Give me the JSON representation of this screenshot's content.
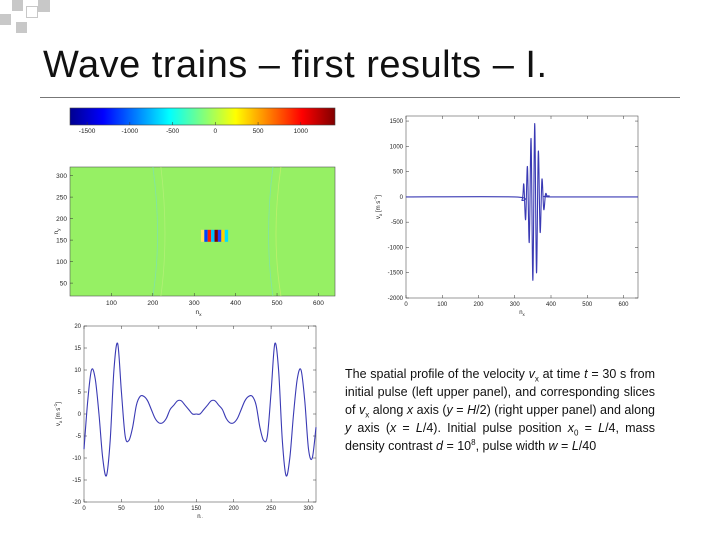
{
  "slide": {
    "title": "Wave trains – first results – I.",
    "colors": {
      "title_rule": "#777777",
      "deco_square": "#c8c8c8",
      "curve": "#3a3ab4",
      "field": "#96f064"
    }
  },
  "caption": {
    "s1": "The spatial profile of the velocity ",
    "v": "v",
    "x": "x",
    "s2": " at time ",
    "t": "t",
    "s3": " = 30 s from initial pulse (left upper panel), and corresponding slices of ",
    "s4": " along ",
    "x_axis": "x",
    "s5": " axis (",
    "y": "y",
    "s6": " = ",
    "H": "H",
    "s7": "/2) (right upper panel) and along ",
    "y_axis": "y",
    "s8": " axis (",
    "x2": "x",
    "s9": " = ",
    "L": "L",
    "s10": "/4). Initial pulse position ",
    "x0": "x",
    "zero": "0",
    "s11": " = ",
    "L2": "L",
    "s12": "/4, mass density contrast ",
    "d": "d",
    "s13": " = 10",
    "eight": "8",
    "s14": ", pulse width ",
    "w": "w",
    "s15": " = ",
    "L3": "L",
    "s16": "/40"
  },
  "chart_data": [
    {
      "type": "heatmap",
      "panel": "left upper",
      "colorbar": {
        "ticks": [
          -1500,
          -1000,
          -500,
          0,
          500,
          1000
        ],
        "range": [
          -1700,
          1400
        ],
        "colormap": "jet"
      },
      "xlabel": "n_x",
      "ylabel": "n_y",
      "x_ticks": [
        100,
        200,
        300,
        400,
        500,
        600
      ],
      "y_ticks": [
        50,
        100,
        150,
        200,
        250,
        300
      ],
      "xlim": [
        0,
        640
      ],
      "ylim": [
        20,
        320
      ],
      "background_value": 0,
      "pulse_center": [
        350,
        160
      ]
    },
    {
      "type": "line",
      "panel": "right upper",
      "xlabel": "n_x",
      "ylabel": "v_x [m s^-1]",
      "x_ticks": [
        0,
        100,
        200,
        300,
        400,
        500,
        600
      ],
      "y_ticks": [
        -2000,
        -1500,
        -1000,
        -500,
        0,
        500,
        1000,
        1500
      ],
      "xlim": [
        0,
        640
      ],
      "ylim": [
        -2000,
        1600
      ],
      "grid": false,
      "x": [
        0,
        300,
        320,
        325,
        330,
        335,
        340,
        345,
        350,
        355,
        360,
        365,
        370,
        375,
        380,
        385,
        390,
        395,
        400,
        640
      ],
      "y": [
        0,
        0,
        -60,
        250,
        -450,
        600,
        -900,
        1150,
        -1650,
        1450,
        -1500,
        900,
        -700,
        350,
        -250,
        60,
        0,
        20,
        0,
        0
      ]
    },
    {
      "type": "line",
      "panel": "bottom",
      "xlabel": "n_y",
      "ylabel": "v_x [m s^-1]",
      "x_ticks": [
        0,
        50,
        100,
        150,
        200,
        250,
        300
      ],
      "y_ticks": [
        -20,
        -15,
        -10,
        -5,
        0,
        5,
        10,
        15,
        20
      ],
      "xlim": [
        0,
        310
      ],
      "ylim": [
        -20,
        20
      ],
      "grid": false,
      "x": [
        0,
        5,
        10,
        15,
        20,
        25,
        30,
        35,
        40,
        45,
        50,
        55,
        60,
        65,
        70,
        75,
        80,
        85,
        90,
        95,
        100,
        105,
        110,
        115,
        120,
        125,
        130,
        135,
        140,
        145,
        150,
        155,
        160,
        165,
        170,
        175,
        180,
        185,
        190,
        195,
        200,
        205,
        210,
        215,
        220,
        225,
        230,
        235,
        240,
        245,
        250,
        255,
        260,
        265,
        270,
        275,
        280,
        285,
        290,
        295,
        300,
        305,
        310
      ],
      "y": [
        -8,
        3,
        10,
        8,
        0,
        -10,
        -14,
        -6,
        10,
        16,
        5,
        -5,
        -6,
        -3,
        2,
        4,
        4,
        3,
        1,
        -1,
        -2,
        -2,
        -1,
        1,
        2,
        3,
        3,
        2,
        1,
        0,
        0,
        0,
        1,
        2,
        3,
        3,
        2,
        1,
        -1,
        -2,
        -2,
        -1,
        1,
        3,
        4,
        4,
        2,
        -3,
        -6,
        -5,
        5,
        16,
        10,
        -6,
        -14,
        -10,
        0,
        8,
        10,
        3,
        -8,
        -10,
        -3
      ]
    }
  ]
}
